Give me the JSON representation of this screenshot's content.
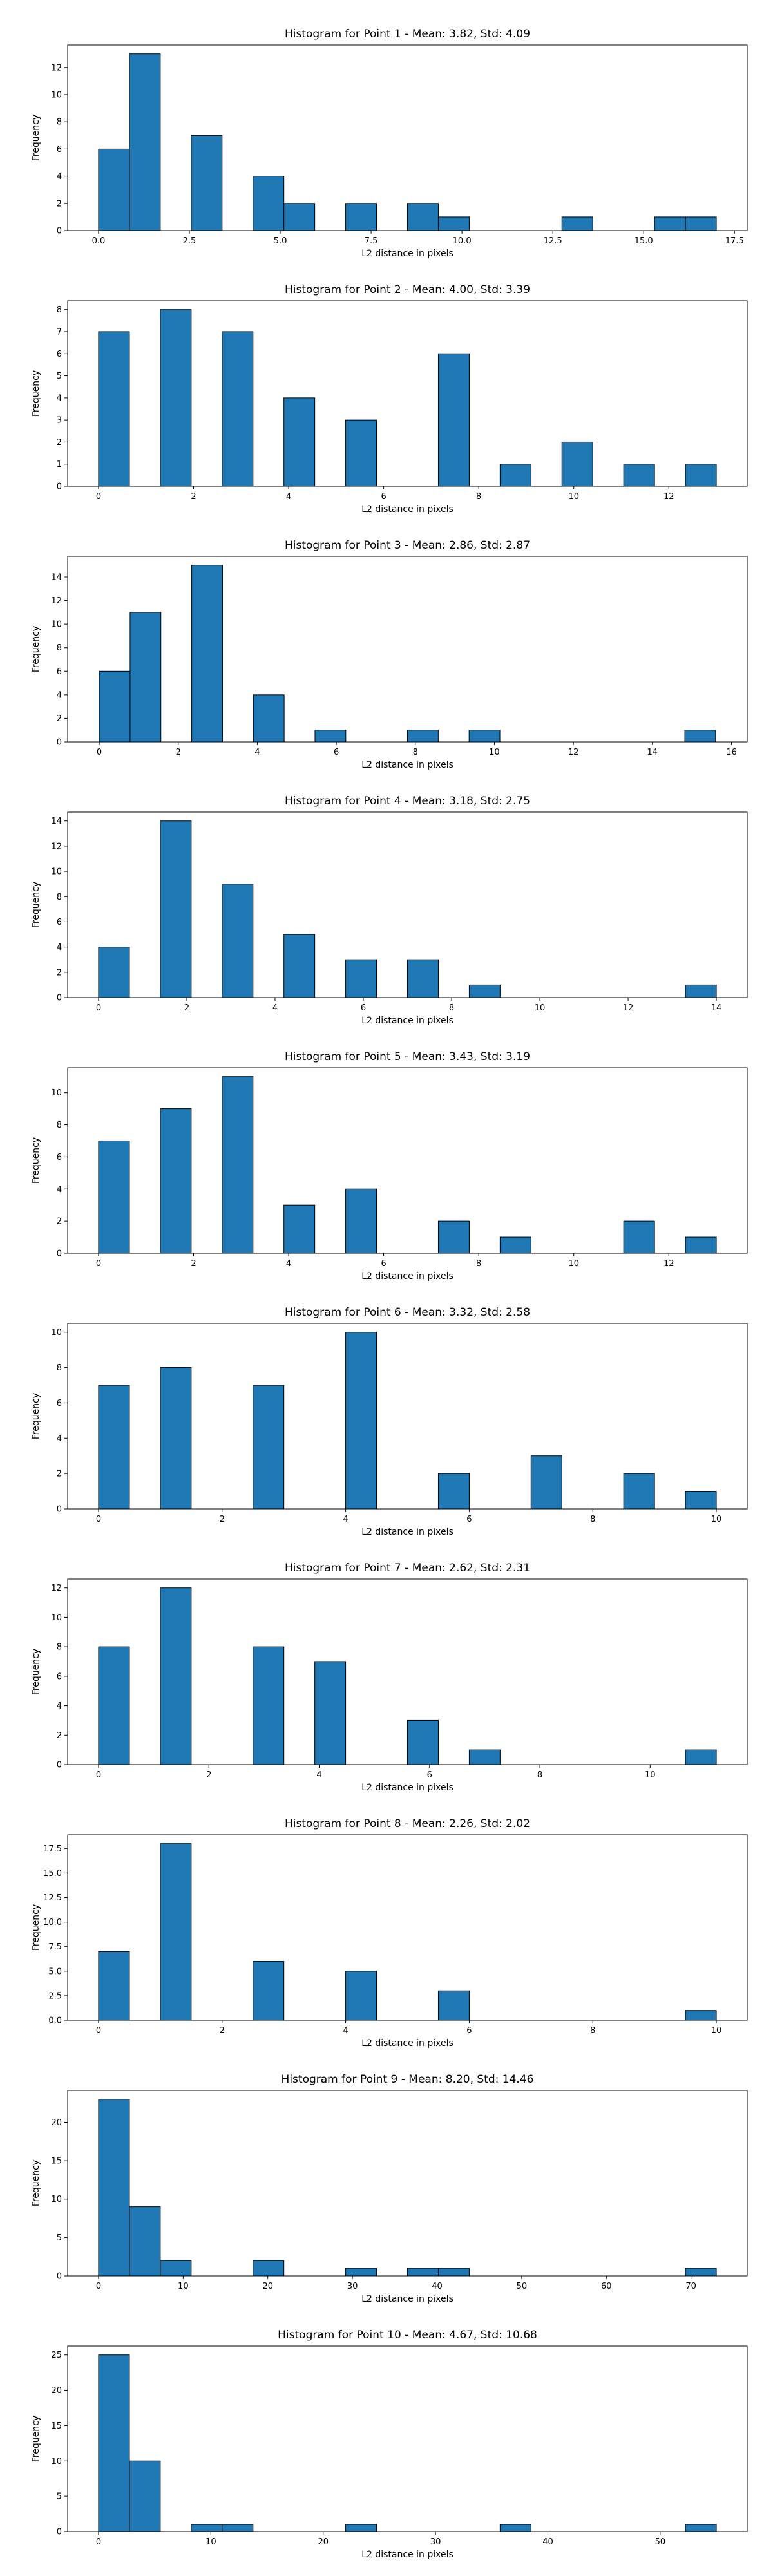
{
  "colors": {
    "bar_fill": "#1f77b4",
    "bar_edge": "#000000"
  },
  "chart_data": [
    {
      "type": "bar",
      "title": "Histogram for Point 1 - Mean: 3.82, Std: 4.09",
      "xlabel": "L2 distance in pixels",
      "ylabel": "Frequency",
      "xlim": [
        -0.85,
        17.85
      ],
      "ylim": [
        0,
        13.65
      ],
      "xticks": [
        "0.0",
        "2.5",
        "5.0",
        "7.5",
        "10.0",
        "12.5",
        "15.0",
        "17.5"
      ],
      "xtick_values": [
        0,
        2.5,
        5,
        7.5,
        10,
        12.5,
        15,
        17.5
      ],
      "yticks": [
        "0",
        "2",
        "4",
        "6",
        "8",
        "10",
        "12"
      ],
      "ytick_values": [
        0,
        2,
        4,
        6,
        8,
        10,
        12
      ],
      "bins": [
        {
          "x0": 0.0,
          "x1": 0.85,
          "count": 6
        },
        {
          "x0": 0.85,
          "x1": 1.7,
          "count": 13
        },
        {
          "x0": 2.55,
          "x1": 3.4,
          "count": 7
        },
        {
          "x0": 4.25,
          "x1": 5.1,
          "count": 4
        },
        {
          "x0": 5.1,
          "x1": 5.95,
          "count": 2
        },
        {
          "x0": 6.8,
          "x1": 7.65,
          "count": 2
        },
        {
          "x0": 8.5,
          "x1": 9.35,
          "count": 2
        },
        {
          "x0": 9.35,
          "x1": 10.2,
          "count": 1
        },
        {
          "x0": 12.75,
          "x1": 13.6,
          "count": 1
        },
        {
          "x0": 15.3,
          "x1": 16.15,
          "count": 1
        },
        {
          "x0": 16.15,
          "x1": 17.0,
          "count": 1
        }
      ]
    },
    {
      "type": "bar",
      "title": "Histogram for Point 2 - Mean: 4.00, Std: 3.39",
      "xlabel": "L2 distance in pixels",
      "ylabel": "Frequency",
      "xlim": [
        -0.65,
        13.65
      ],
      "ylim": [
        0,
        8.4
      ],
      "xticks": [
        "0",
        "2",
        "4",
        "6",
        "8",
        "10",
        "12"
      ],
      "xtick_values": [
        0,
        2,
        4,
        6,
        8,
        10,
        12
      ],
      "yticks": [
        "0",
        "1",
        "2",
        "3",
        "4",
        "5",
        "6",
        "7",
        "8"
      ],
      "ytick_values": [
        0,
        1,
        2,
        3,
        4,
        5,
        6,
        7,
        8
      ],
      "bins": [
        {
          "x0": 0.0,
          "x1": 0.65,
          "count": 7
        },
        {
          "x0": 1.3,
          "x1": 1.95,
          "count": 8
        },
        {
          "x0": 2.6,
          "x1": 3.25,
          "count": 7
        },
        {
          "x0": 3.9,
          "x1": 4.55,
          "count": 4
        },
        {
          "x0": 5.2,
          "x1": 5.85,
          "count": 3
        },
        {
          "x0": 7.15,
          "x1": 7.8,
          "count": 6
        },
        {
          "x0": 8.45,
          "x1": 9.1,
          "count": 1
        },
        {
          "x0": 9.75,
          "x1": 10.4,
          "count": 2
        },
        {
          "x0": 11.05,
          "x1": 11.7,
          "count": 1
        },
        {
          "x0": 12.35,
          "x1": 13.0,
          "count": 1
        }
      ]
    },
    {
      "type": "bar",
      "title": "Histogram for Point 3 - Mean: 2.86, Std: 2.87",
      "xlabel": "L2 distance in pixels",
      "ylabel": "Frequency",
      "xlim": [
        -0.8,
        16.4
      ],
      "ylim": [
        0,
        15.75
      ],
      "xticks": [
        "0",
        "2",
        "4",
        "6",
        "8",
        "10",
        "12",
        "14",
        "16"
      ],
      "xtick_values": [
        0,
        2,
        4,
        6,
        8,
        10,
        12,
        14,
        16
      ],
      "yticks": [
        "0",
        "2",
        "4",
        "6",
        "8",
        "10",
        "12",
        "14"
      ],
      "ytick_values": [
        0,
        2,
        4,
        6,
        8,
        10,
        12,
        14
      ],
      "bins": [
        {
          "x0": 0.0,
          "x1": 0.78,
          "count": 6
        },
        {
          "x0": 0.78,
          "x1": 1.56,
          "count": 11
        },
        {
          "x0": 2.34,
          "x1": 3.12,
          "count": 15
        },
        {
          "x0": 3.9,
          "x1": 4.68,
          "count": 4
        },
        {
          "x0": 5.46,
          "x1": 6.24,
          "count": 1
        },
        {
          "x0": 7.8,
          "x1": 8.58,
          "count": 1
        },
        {
          "x0": 9.36,
          "x1": 10.14,
          "count": 1
        },
        {
          "x0": 14.82,
          "x1": 15.6,
          "count": 1
        }
      ]
    },
    {
      "type": "bar",
      "title": "Histogram for Point 4 - Mean: 3.18, Std: 2.75",
      "xlabel": "L2 distance in pixels",
      "ylabel": "Frequency",
      "xlim": [
        -0.7,
        14.7
      ],
      "ylim": [
        0,
        14.7
      ],
      "xticks": [
        "0",
        "2",
        "4",
        "6",
        "8",
        "10",
        "12",
        "14"
      ],
      "xtick_values": [
        0,
        2,
        4,
        6,
        8,
        10,
        12,
        14
      ],
      "yticks": [
        "0",
        "2",
        "4",
        "6",
        "8",
        "10",
        "12",
        "14"
      ],
      "ytick_values": [
        0,
        2,
        4,
        6,
        8,
        10,
        12,
        14
      ],
      "bins": [
        {
          "x0": 0.0,
          "x1": 0.7,
          "count": 4
        },
        {
          "x0": 1.4,
          "x1": 2.1,
          "count": 14
        },
        {
          "x0": 2.8,
          "x1": 3.5,
          "count": 9
        },
        {
          "x0": 4.2,
          "x1": 4.9,
          "count": 5
        },
        {
          "x0": 5.6,
          "x1": 6.3,
          "count": 3
        },
        {
          "x0": 7.0,
          "x1": 7.7,
          "count": 3
        },
        {
          "x0": 8.4,
          "x1": 9.1,
          "count": 1
        },
        {
          "x0": 13.3,
          "x1": 14.0,
          "count": 1
        }
      ]
    },
    {
      "type": "bar",
      "title": "Histogram for Point 5 - Mean: 3.43, Std: 3.19",
      "xlabel": "L2 distance in pixels",
      "ylabel": "Frequency",
      "xlim": [
        -0.65,
        13.65
      ],
      "ylim": [
        0,
        11.55
      ],
      "xticks": [
        "0",
        "2",
        "4",
        "6",
        "8",
        "10",
        "12"
      ],
      "xtick_values": [
        0,
        2,
        4,
        6,
        8,
        10,
        12
      ],
      "yticks": [
        "0",
        "2",
        "4",
        "6",
        "8",
        "10"
      ],
      "ytick_values": [
        0,
        2,
        4,
        6,
        8,
        10
      ],
      "bins": [
        {
          "x0": 0.0,
          "x1": 0.65,
          "count": 7
        },
        {
          "x0": 1.3,
          "x1": 1.95,
          "count": 9
        },
        {
          "x0": 2.6,
          "x1": 3.25,
          "count": 11
        },
        {
          "x0": 3.9,
          "x1": 4.55,
          "count": 3
        },
        {
          "x0": 5.2,
          "x1": 5.85,
          "count": 4
        },
        {
          "x0": 7.15,
          "x1": 7.8,
          "count": 2
        },
        {
          "x0": 8.45,
          "x1": 9.1,
          "count": 1
        },
        {
          "x0": 11.05,
          "x1": 11.7,
          "count": 2
        },
        {
          "x0": 12.35,
          "x1": 13.0,
          "count": 1
        }
      ]
    },
    {
      "type": "bar",
      "title": "Histogram for Point 6 - Mean: 3.32, Std: 2.58",
      "xlabel": "L2 distance in pixels",
      "ylabel": "Frequency",
      "xlim": [
        -0.5,
        10.5
      ],
      "ylim": [
        0,
        10.5
      ],
      "xticks": [
        "0",
        "2",
        "4",
        "6",
        "8",
        "10"
      ],
      "xtick_values": [
        0,
        2,
        4,
        6,
        8,
        10
      ],
      "yticks": [
        "0",
        "2",
        "4",
        "6",
        "8",
        "10"
      ],
      "ytick_values": [
        0,
        2,
        4,
        6,
        8,
        10
      ],
      "bins": [
        {
          "x0": 0.0,
          "x1": 0.5,
          "count": 7
        },
        {
          "x0": 1.0,
          "x1": 1.5,
          "count": 8
        },
        {
          "x0": 2.5,
          "x1": 3.0,
          "count": 7
        },
        {
          "x0": 4.0,
          "x1": 4.5,
          "count": 10
        },
        {
          "x0": 5.5,
          "x1": 6.0,
          "count": 2
        },
        {
          "x0": 7.0,
          "x1": 7.5,
          "count": 3
        },
        {
          "x0": 8.5,
          "x1": 9.0,
          "count": 2
        },
        {
          "x0": 9.5,
          "x1": 10.0,
          "count": 1
        }
      ]
    },
    {
      "type": "bar",
      "title": "Histogram for Point 7 - Mean: 2.62, Std: 2.31",
      "xlabel": "L2 distance in pixels",
      "ylabel": "Frequency",
      "xlim": [
        -0.56,
        11.76
      ],
      "ylim": [
        0,
        12.6
      ],
      "xticks": [
        "0",
        "2",
        "4",
        "6",
        "8",
        "10"
      ],
      "xtick_values": [
        0,
        2,
        4,
        6,
        8,
        10
      ],
      "yticks": [
        "0",
        "2",
        "4",
        "6",
        "8",
        "10",
        "12"
      ],
      "ytick_values": [
        0,
        2,
        4,
        6,
        8,
        10,
        12
      ],
      "bins": [
        {
          "x0": 0.0,
          "x1": 0.56,
          "count": 8
        },
        {
          "x0": 1.12,
          "x1": 1.68,
          "count": 12
        },
        {
          "x0": 2.8,
          "x1": 3.36,
          "count": 8
        },
        {
          "x0": 3.92,
          "x1": 4.48,
          "count": 7
        },
        {
          "x0": 5.6,
          "x1": 6.16,
          "count": 3
        },
        {
          "x0": 6.72,
          "x1": 7.28,
          "count": 1
        },
        {
          "x0": 10.64,
          "x1": 11.2,
          "count": 1
        }
      ]
    },
    {
      "type": "bar",
      "title": "Histogram for Point 8 - Mean: 2.26, Std: 2.02",
      "xlabel": "L2 distance in pixels",
      "ylabel": "Frequency",
      "xlim": [
        -0.5,
        10.5
      ],
      "ylim": [
        0,
        18.9
      ],
      "xticks": [
        "0",
        "2",
        "4",
        "6",
        "8",
        "10"
      ],
      "xtick_values": [
        0,
        2,
        4,
        6,
        8,
        10
      ],
      "yticks": [
        "0.0",
        "2.5",
        "5.0",
        "7.5",
        "10.0",
        "12.5",
        "15.0",
        "17.5"
      ],
      "ytick_values": [
        0,
        2.5,
        5,
        7.5,
        10,
        12.5,
        15,
        17.5
      ],
      "bins": [
        {
          "x0": 0.0,
          "x1": 0.5,
          "count": 7
        },
        {
          "x0": 1.0,
          "x1": 1.5,
          "count": 18
        },
        {
          "x0": 2.5,
          "x1": 3.0,
          "count": 6
        },
        {
          "x0": 4.0,
          "x1": 4.5,
          "count": 5
        },
        {
          "x0": 5.5,
          "x1": 6.0,
          "count": 3
        },
        {
          "x0": 9.5,
          "x1": 10.0,
          "count": 1
        }
      ]
    },
    {
      "type": "bar",
      "title": "Histogram for Point 9 - Mean: 8.20, Std: 14.46",
      "xlabel": "L2 distance in pixels",
      "ylabel": "Frequency",
      "xlim": [
        -3.65,
        76.65
      ],
      "ylim": [
        0,
        24.15
      ],
      "xticks": [
        "0",
        "10",
        "20",
        "30",
        "40",
        "50",
        "60",
        "70"
      ],
      "xtick_values": [
        0,
        10,
        20,
        30,
        40,
        50,
        60,
        70
      ],
      "yticks": [
        "0",
        "5",
        "10",
        "15",
        "20"
      ],
      "ytick_values": [
        0,
        5,
        10,
        15,
        20
      ],
      "bins": [
        {
          "x0": 0.0,
          "x1": 3.65,
          "count": 23
        },
        {
          "x0": 3.65,
          "x1": 7.3,
          "count": 9
        },
        {
          "x0": 7.3,
          "x1": 10.95,
          "count": 2
        },
        {
          "x0": 18.25,
          "x1": 21.9,
          "count": 2
        },
        {
          "x0": 29.2,
          "x1": 32.85,
          "count": 1
        },
        {
          "x0": 36.5,
          "x1": 40.15,
          "count": 1
        },
        {
          "x0": 40.15,
          "x1": 43.8,
          "count": 1
        },
        {
          "x0": 69.35,
          "x1": 73.0,
          "count": 1
        }
      ]
    },
    {
      "type": "bar",
      "title": "Histogram for Point 10 - Mean: 4.67, Std: 10.68",
      "xlabel": "L2 distance in pixels",
      "ylabel": "Frequency",
      "xlim": [
        -2.75,
        57.75
      ],
      "ylim": [
        0,
        26.25
      ],
      "xticks": [
        "0",
        "10",
        "20",
        "30",
        "40",
        "50"
      ],
      "xtick_values": [
        0,
        10,
        20,
        30,
        40,
        50
      ],
      "yticks": [
        "0",
        "5",
        "10",
        "15",
        "20",
        "25"
      ],
      "ytick_values": [
        0,
        5,
        10,
        15,
        20,
        25
      ],
      "bins": [
        {
          "x0": 0.0,
          "x1": 2.75,
          "count": 25
        },
        {
          "x0": 2.75,
          "x1": 5.5,
          "count": 10
        },
        {
          "x0": 8.25,
          "x1": 11.0,
          "count": 1
        },
        {
          "x0": 11.0,
          "x1": 13.75,
          "count": 1
        },
        {
          "x0": 22.0,
          "x1": 24.75,
          "count": 1
        },
        {
          "x0": 35.75,
          "x1": 38.5,
          "count": 1
        },
        {
          "x0": 52.25,
          "x1": 55.0,
          "count": 1
        }
      ]
    }
  ]
}
